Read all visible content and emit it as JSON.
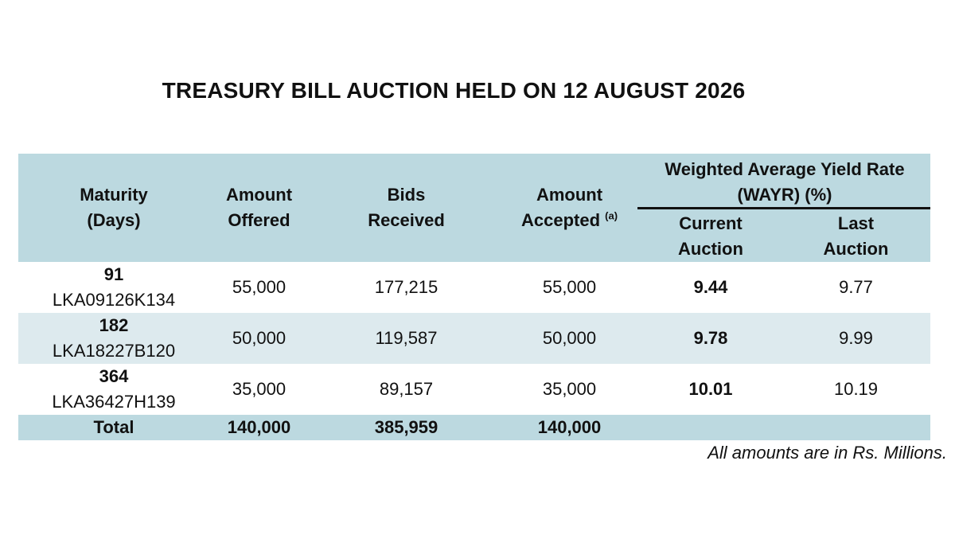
{
  "title": "TREASURY BILL AUCTION HELD ON 12 AUGUST 2026",
  "colors": {
    "header_bg": "#bcd9e0",
    "alt_row_bg": "#ddeaee"
  },
  "table": {
    "headers": {
      "maturity_l1": "Maturity",
      "maturity_l2": "(Days)",
      "offered_l1": "Amount",
      "offered_l2": "Offered",
      "bids_l1": "Bids",
      "bids_l2": "Received",
      "accepted_l1": "Amount",
      "accepted_l2": "Accepted",
      "accepted_sup": "(a)",
      "wayr_l1": "Weighted Average Yield Rate",
      "wayr_l2": "(WAYR) (%)",
      "current_l1": "Current",
      "current_l2": "Auction",
      "last_l1": "Last",
      "last_l2": "Auction"
    },
    "rows": [
      {
        "days": "91",
        "isin": "LKA09126K134",
        "offered": "55,000",
        "bids": "177,215",
        "accepted": "55,000",
        "current": "9.44",
        "last": "9.77"
      },
      {
        "days": "182",
        "isin": "LKA18227B120",
        "offered": "50,000",
        "bids": "119,587",
        "accepted": "50,000",
        "current": "9.78",
        "last": "9.99"
      },
      {
        "days": "364",
        "isin": "LKA36427H139",
        "offered": "35,000",
        "bids": "89,157",
        "accepted": "35,000",
        "current": "10.01",
        "last": "10.19"
      }
    ],
    "total": {
      "label": "Total",
      "offered": "140,000",
      "bids": "385,959",
      "accepted": "140,000"
    }
  },
  "note": "All amounts are in Rs. Millions."
}
